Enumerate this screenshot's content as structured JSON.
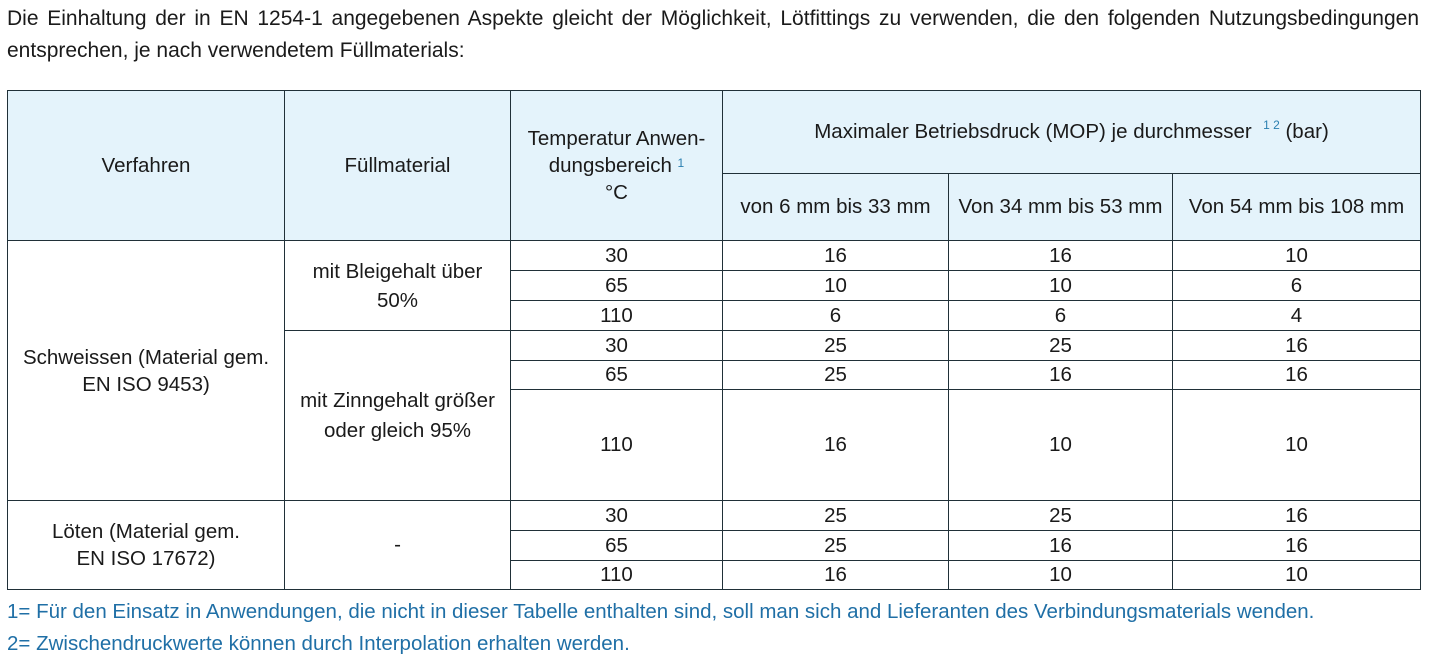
{
  "intro": "Die Einhaltung der in EN 1254-1 angegebenen Aspekte gleicht der Möglichkeit, Lötfittings zu verwenden, die den folgenden Nutzungsbedingungen entsprechen, je nach verwendetem Füllmaterials:",
  "table": {
    "headers": {
      "verfahren": "Verfahren",
      "fuellmaterial": "Füllmaterial",
      "temperatur_line1": "Temperatur Anwen-",
      "temperatur_line2": "dungsbereich",
      "temperatur_sup": "1",
      "temperatur_unit": "°C",
      "mop": "Maximaler Betriebsdruck (MOP) je durchmesser",
      "mop_sup": "1 2",
      "mop_unit": "(bar)",
      "d1": "von 6 mm bis 33 mm",
      "d2": "Von 34 mm bis 53 mm",
      "d3": "Von 54 mm bis 108 mm"
    },
    "groups": {
      "schweissen": "Schweissen (Material gem. EN ISO 9453)",
      "blei": "mit Bleigehalt über 50%",
      "zinn": "mit Zinngehalt größer oder gleich 95%",
      "loeten": "Löten (Material gem. EN ISO 17672)",
      "loeten_material": "-"
    },
    "rows": [
      [
        "30",
        "16",
        "16",
        "10"
      ],
      [
        "65",
        "10",
        "10",
        "6"
      ],
      [
        "110",
        "6",
        "6",
        "4"
      ],
      [
        "30",
        "25",
        "25",
        "16"
      ],
      [
        "65",
        "25",
        "16",
        "16"
      ],
      [
        "110",
        "16",
        "10",
        "10"
      ],
      [
        "30",
        "25",
        "25",
        "16"
      ],
      [
        "65",
        "25",
        "16",
        "16"
      ],
      [
        "110",
        "16",
        "10",
        "10"
      ]
    ]
  },
  "footnotes": [
    "1= Für den Einsatz in Anwendungen, die nicht in dieser Tabelle enthalten sind, soll man sich and Lieferanten des Verbindungsmaterials wenden.",
    "2= Zwischendruckwerte können durch Interpolation erhalten werden."
  ]
}
